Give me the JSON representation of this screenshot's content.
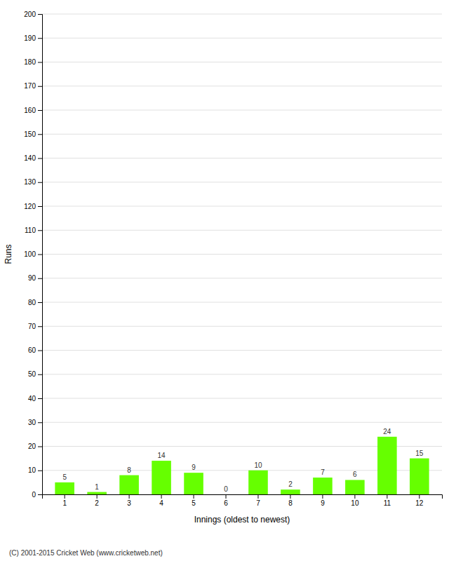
{
  "chart_data": {
    "type": "bar",
    "xlabel": "Innings (oldest to newest)",
    "ylabel": "Runs",
    "categories": [
      1,
      2,
      3,
      4,
      5,
      6,
      7,
      8,
      9,
      10,
      11,
      12
    ],
    "values": [
      5,
      1,
      8,
      14,
      9,
      0,
      10,
      2,
      7,
      6,
      24,
      15
    ],
    "color": "#66ff00",
    "ylim": [
      0,
      200
    ],
    "yticks": [
      0,
      10,
      20,
      30,
      40,
      50,
      60,
      70,
      80,
      90,
      100,
      110,
      120,
      130,
      140,
      150,
      160,
      170,
      180,
      190,
      200
    ],
    "grid": true,
    "data_labels": true,
    "annotations": [
      "(C) 2001-2015 Cricket Web (www.cricketweb.net)"
    ]
  }
}
